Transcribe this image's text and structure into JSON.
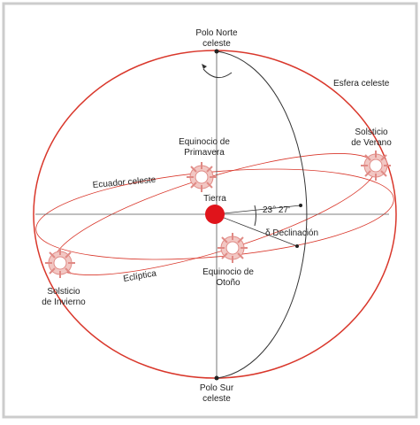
{
  "labels": {
    "north_pole": [
      "Polo Norte",
      "celeste"
    ],
    "south_pole": [
      "Polo Sur",
      "celeste"
    ],
    "celestial_sphere": "Esfera celeste",
    "summer_solstice": [
      "Solsticio",
      "de Verano"
    ],
    "winter_solstice": [
      "Solsticio",
      "de Invierno"
    ],
    "spring_equinox": [
      "Equinocio de",
      "Primavera"
    ],
    "autumn_equinox": [
      "Equinocio de",
      "Otoño"
    ],
    "celestial_equator": "Ecuador celeste",
    "ecliptic": "Eclíptica",
    "earth": "Tierra",
    "obliquity": "23° 27'",
    "declination": "δ Declinación"
  }
}
